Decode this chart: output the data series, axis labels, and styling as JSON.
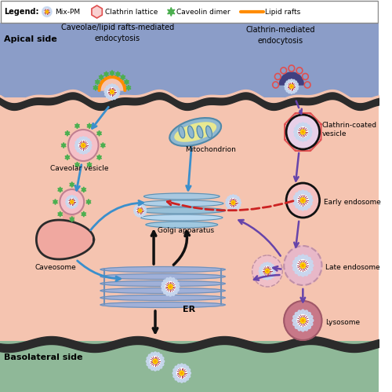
{
  "bg_top": "#8B9DC8",
  "bg_cell": "#F5C8B4",
  "bg_bottom": "#8FB898",
  "membrane_color": "#2B2B2B",
  "legend_bg": "#FFFFFF",
  "apical_label": "Apical side",
  "basolateral_label": "Basolateral side",
  "left_title": "Caveolae/lipid rafts-mediated\nendocytosis",
  "right_title": "Clathrin-mediated\nendocytosis",
  "organelles": [
    "Caveolar vesicle",
    "Caveosome",
    "Mitochondrion",
    "Golgi apparatus",
    "ER",
    "Clathrin-coated\nvesicle",
    "Early endosome",
    "Late endosome",
    "Lysosome"
  ],
  "blue_arrow": "#3A8FCC",
  "purple_arrow": "#6644AA",
  "red_dashed": "#CC2222",
  "black_arrow": "#111111",
  "caveolin_color": "#4CAF50",
  "lipid_raft_color": "#FF8C00",
  "clathrin_color": "#E05050",
  "er_color": "#8090CC",
  "golgi_color": "#90C0D8",
  "mito_outer": "#90B8D0",
  "mito_inner": "#D4E890",
  "caveosome_color": "#F0A8A0",
  "early_endo_color": "#F5C0C0",
  "late_endo_color": "#E8B0C0",
  "lyso_color": "#D08090"
}
